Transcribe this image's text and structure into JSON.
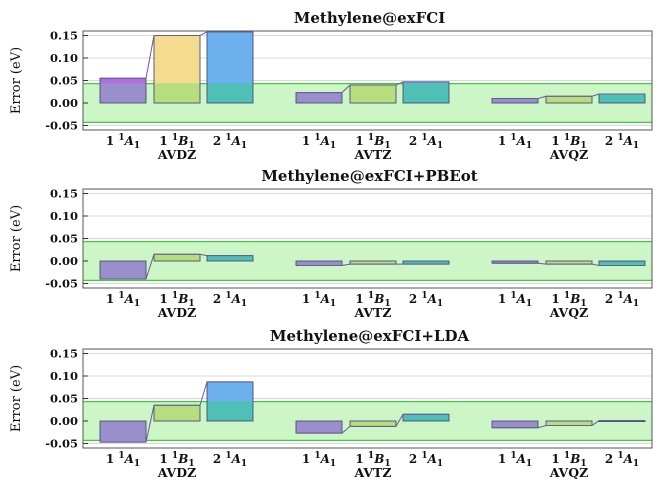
{
  "chart_data": [
    {
      "type": "bar",
      "title": "Methylene@exFCI",
      "ylabel": "Error (eV)",
      "ylim": [
        -0.06,
        0.16
      ],
      "yticks": [
        "-0.05",
        "0.00",
        "0.05",
        "0.10",
        "0.15"
      ],
      "ytick_values": [
        -0.05,
        0.0,
        0.05,
        0.1,
        0.15
      ],
      "groups": [
        "AVDZ",
        "AVTZ",
        "AVQZ"
      ],
      "states": [
        {
          "n": "1",
          "sup": "1",
          "sym": "A",
          "sub": "1"
        },
        {
          "n": "1",
          "sup": "1",
          "sym": "B",
          "sub": "1"
        },
        {
          "n": "2",
          "sup": "1",
          "sym": "A",
          "sub": "1"
        }
      ],
      "chemical_accuracy_band": [
        -0.043,
        0.043
      ],
      "values": [
        [
          0.055,
          0.15,
          0.158
        ],
        [
          0.023,
          0.04,
          0.047
        ],
        [
          0.01,
          0.015,
          0.02
        ]
      ]
    },
    {
      "type": "bar",
      "title": "Methylene@exFCI+PBEot",
      "ylabel": "Error (eV)",
      "ylim": [
        -0.06,
        0.16
      ],
      "yticks": [
        "-0.05",
        "0.00",
        "0.05",
        "0.10",
        "0.15"
      ],
      "ytick_values": [
        -0.05,
        0.0,
        0.05,
        0.1,
        0.15
      ],
      "groups": [
        "AVDZ",
        "AVTZ",
        "AVQZ"
      ],
      "states": [
        {
          "n": "1",
          "sup": "1",
          "sym": "A",
          "sub": "1"
        },
        {
          "n": "1",
          "sup": "1",
          "sym": "B",
          "sub": "1"
        },
        {
          "n": "2",
          "sup": "1",
          "sym": "A",
          "sub": "1"
        }
      ],
      "chemical_accuracy_band": [
        -0.043,
        0.043
      ],
      "values": [
        [
          -0.04,
          0.015,
          0.012
        ],
        [
          -0.01,
          -0.007,
          -0.007
        ],
        [
          -0.005,
          -0.007,
          -0.01
        ]
      ]
    },
    {
      "type": "bar",
      "title": "Methylene@exFCI+LDA",
      "ylabel": "Error (eV)",
      "ylim": [
        -0.06,
        0.16
      ],
      "yticks": [
        "-0.05",
        "0.00",
        "0.05",
        "0.10",
        "0.15"
      ],
      "ytick_values": [
        -0.05,
        0.0,
        0.05,
        0.1,
        0.15
      ],
      "groups": [
        "AVDZ",
        "AVTZ",
        "AVQZ"
      ],
      "states": [
        {
          "n": "1",
          "sup": "1",
          "sym": "A",
          "sub": "1"
        },
        {
          "n": "1",
          "sup": "1",
          "sym": "B",
          "sub": "1"
        },
        {
          "n": "2",
          "sup": "1",
          "sym": "A",
          "sub": "1"
        }
      ],
      "chemical_accuracy_band": [
        -0.043,
        0.043
      ],
      "values": [
        [
          -0.047,
          0.035,
          0.087
        ],
        [
          -0.027,
          -0.012,
          0.015
        ],
        [
          -0.015,
          -0.01,
          0.001
        ]
      ]
    }
  ],
  "colors": {
    "state_top": [
      "#b26ee0",
      "#f4dc8f",
      "#6cb0ee"
    ],
    "state_bottom": [
      "#9a8fca",
      "#b7de7e",
      "#4ec0b6"
    ],
    "band_fill": "#c8f5c0",
    "band_line": "#3ecf3e",
    "frame": "#555555",
    "grid": "#cccccc",
    "bar_stroke": "#4a4a7a"
  }
}
